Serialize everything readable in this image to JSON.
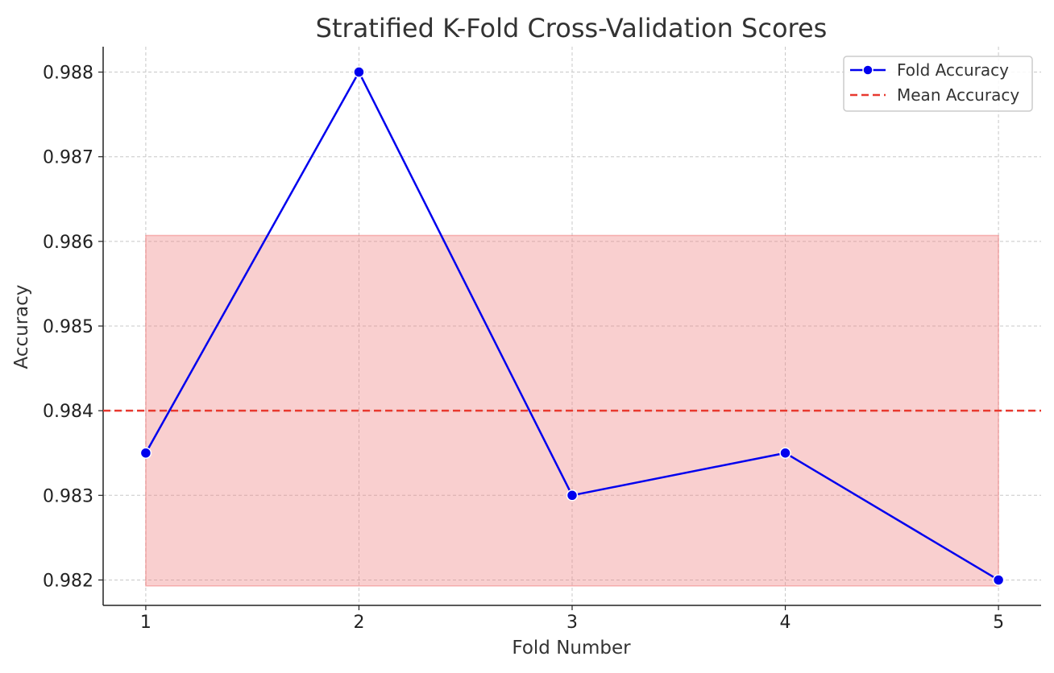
{
  "chart_data": {
    "type": "line",
    "title": "Stratified K-Fold Cross-Validation Scores",
    "xlabel": "Fold Number",
    "ylabel": "Accuracy",
    "x": [
      1,
      2,
      3,
      4,
      5
    ],
    "x_tick_labels": [
      "1",
      "2",
      "3",
      "4",
      "5"
    ],
    "xlim": [
      0.8,
      5.2
    ],
    "ylim": [
      0.9817,
      0.9883
    ],
    "y_ticks": [
      0.982,
      0.983,
      0.984,
      0.985,
      0.986,
      0.987,
      0.988
    ],
    "y_tick_labels": [
      "0.982",
      "0.983",
      "0.984",
      "0.985",
      "0.986",
      "0.987",
      "0.988"
    ],
    "grid": true,
    "legend_position": "top-right",
    "series": [
      {
        "name": "Fold Accuracy",
        "values": [
          0.9835,
          0.988,
          0.983,
          0.9835,
          0.982
        ],
        "color": "#0000ee",
        "marker": "circle",
        "line_style": "solid"
      }
    ],
    "mean_line": {
      "name": "Mean Accuracy",
      "value": 0.984,
      "color": "#e8392f",
      "line_style": "dashed"
    },
    "std_band": {
      "lower": 0.98193,
      "upper": 0.98607,
      "x_range": [
        1,
        5
      ],
      "color": "#f08080",
      "opacity": 0.38
    }
  }
}
